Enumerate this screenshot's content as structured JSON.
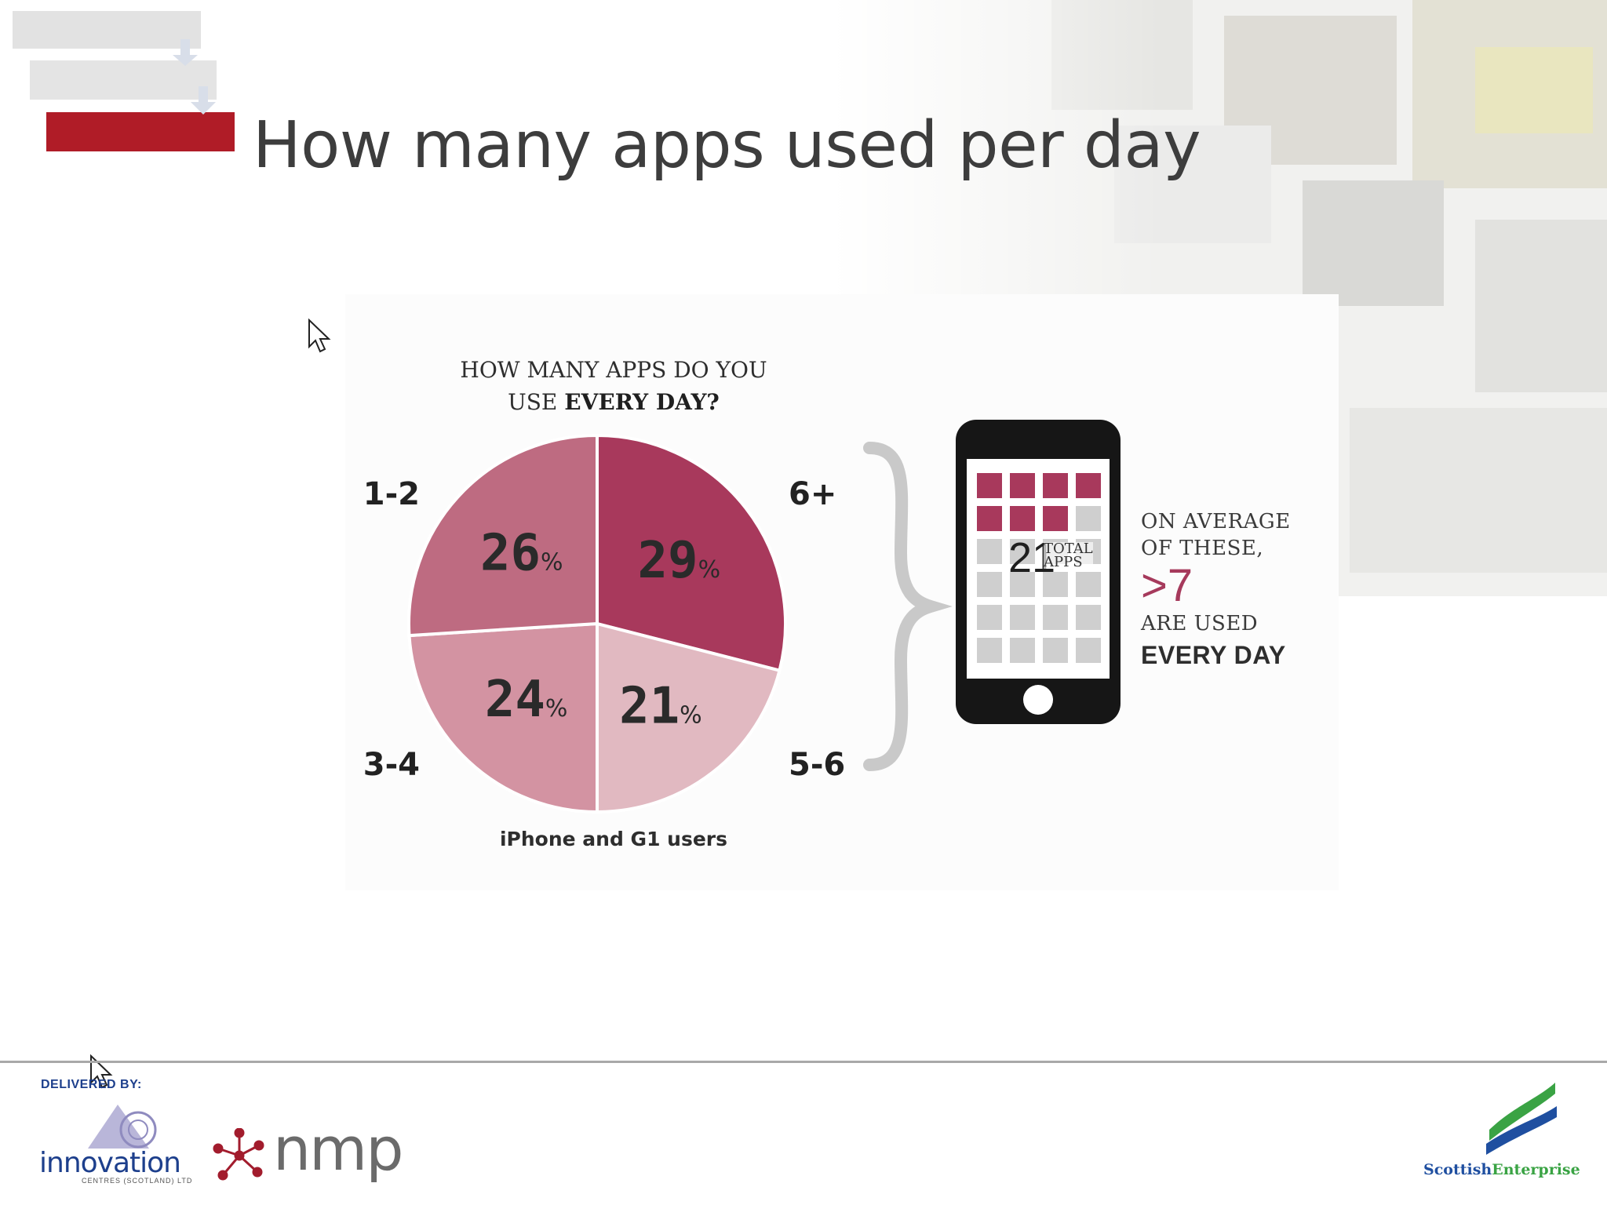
{
  "slide": {
    "title": "How many apps used per day",
    "accent_color": "#b01c27"
  },
  "chart_data": {
    "type": "pie",
    "title": "HOW MANY APPS DO YOU USE EVERY DAY?",
    "title_line1": "HOW MANY APPS DO YOU",
    "title_line2_prefix": "USE ",
    "title_line2_bold": "EVERY DAY?",
    "caption": "iPhone and G1 users",
    "categories": [
      "6+",
      "5-6",
      "3-4",
      "1-2"
    ],
    "values": [
      29,
      21,
      24,
      26
    ],
    "value_labels": [
      "29",
      "21",
      "24",
      "26"
    ],
    "percent_symbol": "%",
    "colors": [
      "#a8395c",
      "#e1b9c1",
      "#d393a2",
      "#be6b81"
    ]
  },
  "infographic": {
    "phone_total_number": "21",
    "phone_total_label_line1": "TOTAL",
    "phone_total_label_line2": "APPS",
    "apps_highlighted": 7,
    "apps_total_icons": 24,
    "side_line1": "ON AVERAGE",
    "side_line2": "OF THESE,",
    "side_highlight": ">7",
    "side_line3": "ARE USED",
    "side_line4": "EVERY DAY",
    "highlight_color": "#a8395c",
    "neutral_color": "#cfcfcf"
  },
  "footer": {
    "delivered_by": "DELIVERED BY:",
    "innovation_logo_text": "innovation",
    "innovation_logo_sub": "CENTRES (SCOTLAND) LTD",
    "nmp_logo_text": "nmp",
    "scottish_logo_word1": "Scottish",
    "scottish_logo_word2": "Enterprise"
  }
}
